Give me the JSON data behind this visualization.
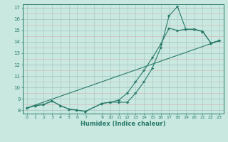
{
  "title": "",
  "xlabel": "Humidex (Indice chaleur)",
  "bg_color": "#c8e8e0",
  "line_color": "#2a7a6a",
  "grid_color_major": "#a8ccc8",
  "grid_color_minor": "#d8b8b8",
  "ylim": [
    7.7,
    17.3
  ],
  "xlim": [
    -0.5,
    23.5
  ],
  "yticks": [
    8,
    9,
    10,
    11,
    12,
    13,
    14,
    15,
    16,
    17
  ],
  "xticks": [
    0,
    1,
    2,
    3,
    4,
    5,
    6,
    7,
    9,
    10,
    11,
    12,
    13,
    14,
    15,
    16,
    17,
    18,
    19,
    20,
    21,
    22,
    23
  ],
  "series1_x": [
    0,
    1,
    2,
    3,
    4,
    5,
    6,
    7,
    9,
    10,
    11,
    12,
    13,
    14,
    15,
    16,
    17,
    18,
    19,
    20,
    21,
    22,
    23
  ],
  "series1_y": [
    8.2,
    8.4,
    8.5,
    8.8,
    8.4,
    8.1,
    8.0,
    7.9,
    8.6,
    8.7,
    8.7,
    8.7,
    9.5,
    10.5,
    11.7,
    13.5,
    16.3,
    17.1,
    15.1,
    15.1,
    14.9,
    13.9,
    14.1
  ],
  "series2_x": [
    0,
    1,
    2,
    3,
    4,
    5,
    6,
    7,
    9,
    10,
    11,
    12,
    13,
    14,
    15,
    16,
    17,
    18,
    19,
    20,
    21,
    22,
    23
  ],
  "series2_y": [
    8.2,
    8.4,
    8.5,
    8.8,
    8.4,
    8.1,
    8.0,
    7.9,
    8.6,
    8.7,
    8.9,
    9.5,
    10.5,
    11.5,
    12.6,
    13.8,
    15.2,
    15.0,
    15.1,
    15.1,
    14.95,
    13.9,
    14.1
  ],
  "series3_x": [
    0,
    23
  ],
  "series3_y": [
    8.2,
    14.1
  ],
  "figsize": [
    3.2,
    2.0
  ],
  "dpi": 100
}
